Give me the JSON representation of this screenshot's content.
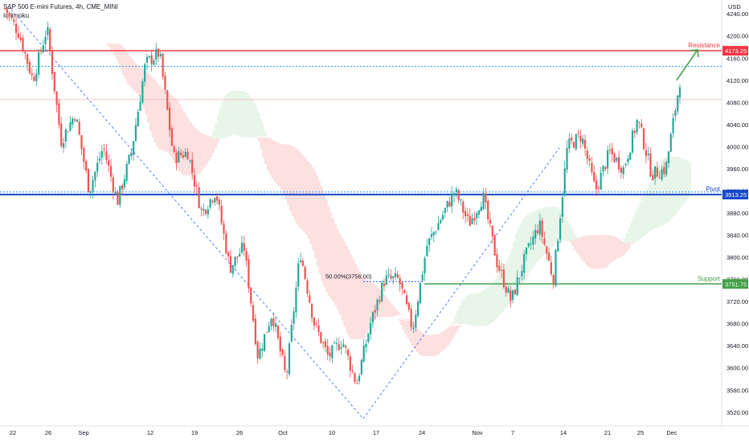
{
  "header": {
    "title": "S&P 500 E-mini Futures, 4h, CME_MINI",
    "indicator": "Ichimoku"
  },
  "colors": {
    "up": "#26a69a",
    "down": "#ef5350",
    "resistance": "#f23645",
    "pivot": "#1848cc",
    "support": "#43a047",
    "cloud_bull": "#e8f5e9",
    "cloud_bear": "#fde0e0",
    "dashed": "#2962ff",
    "arrow": "#43a047"
  },
  "chart_data": {
    "type": "candlestick",
    "currency": "USD",
    "ylim": [
      3495,
      4265
    ],
    "y_ticks": [
      3520,
      3560,
      3600,
      3640,
      3680,
      3720,
      3760,
      3800,
      3840,
      3880,
      3920,
      3960,
      4000,
      4040,
      4080,
      4120,
      4160,
      4200,
      4240
    ],
    "x_ticks": [
      "22",
      "26",
      "Sep",
      "12",
      "19",
      "26",
      "Oct",
      "10",
      "17",
      "24",
      "Nov",
      "7",
      "14",
      "21",
      "25",
      "Dec"
    ],
    "levels": [
      {
        "name": "Resistance",
        "value": 4173.25,
        "tag": "4173.25"
      },
      {
        "name": "Pivot",
        "value": 3913.25,
        "tag": "3913.25"
      },
      {
        "name": "Support",
        "value": 3751.75,
        "tag": "3751.75"
      }
    ],
    "fib_label": "50.00%(3756.00)",
    "fib_value": 3756.0,
    "swing_points": [
      4250,
      4205,
      4120,
      4215,
      4010,
      4060,
      3920,
      4000,
      3900,
      3990,
      4150,
      4170,
      3980,
      3990,
      3880,
      3920,
      3780,
      3820,
      3620,
      3700,
      3580,
      3810,
      3680,
      3620,
      3650,
      3570,
      3680,
      3760,
      3760,
      3670,
      3820,
      3870,
      3920,
      3860,
      3910,
      3790,
      3720,
      3800,
      3860,
      3760,
      4000,
      4020,
      3920,
      3990,
      3960,
      4050,
      3950,
      3960,
      4120
    ]
  }
}
